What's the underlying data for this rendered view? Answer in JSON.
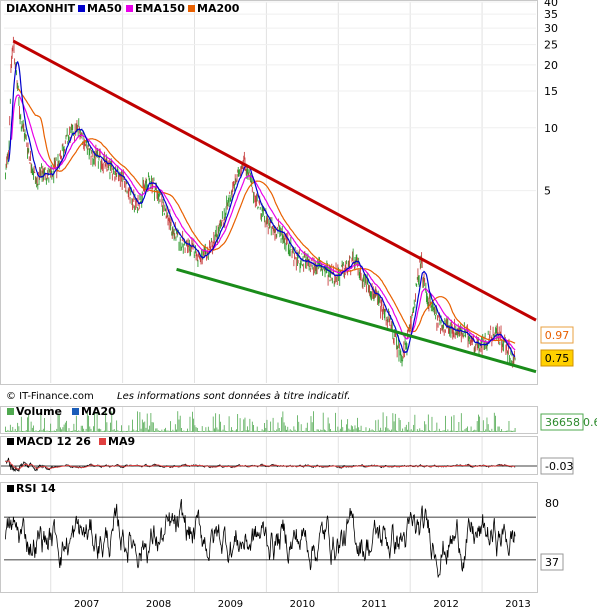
{
  "chart_data": [
    {
      "type": "line",
      "panel": "price",
      "ticker": "DIAXONHIT",
      "legend": [
        {
          "name": "MA50",
          "color": "#0000cc"
        },
        {
          "name": "EMA150",
          "color": "#e800e8"
        },
        {
          "name": "MA200",
          "color": "#e86000"
        }
      ],
      "scale": "log",
      "y_ticks": [
        40,
        35,
        30,
        25,
        20,
        15,
        10,
        5
      ],
      "ylim": [
        0.6,
        40
      ],
      "x_ticks": [
        "2007",
        "2008",
        "2009",
        "2010",
        "2011",
        "2012",
        "2013"
      ],
      "xlim": [
        2006.35,
        2013.75
      ],
      "last_values": {
        "ema150": "0.97",
        "close": "0.75"
      },
      "price_points": [
        [
          2006.35,
          5.0
        ],
        [
          2006.42,
          8.5
        ],
        [
          2006.45,
          20.0
        ],
        [
          2006.48,
          26.0
        ],
        [
          2006.52,
          18.0
        ],
        [
          2006.58,
          11.0
        ],
        [
          2006.65,
          9.0
        ],
        [
          2006.72,
          7.0
        ],
        [
          2006.8,
          5.5
        ],
        [
          2006.9,
          6.2
        ],
        [
          2007.0,
          5.8
        ],
        [
          2007.1,
          6.8
        ],
        [
          2007.2,
          8.5
        ],
        [
          2007.3,
          9.5
        ],
        [
          2007.4,
          10.0
        ],
        [
          2007.5,
          8.0
        ],
        [
          2007.6,
          7.2
        ],
        [
          2007.7,
          7.0
        ],
        [
          2007.8,
          6.5
        ],
        [
          2007.9,
          6.2
        ],
        [
          2008.0,
          5.8
        ],
        [
          2008.1,
          4.8
        ],
        [
          2008.2,
          4.2
        ],
        [
          2008.3,
          5.2
        ],
        [
          2008.4,
          5.6
        ],
        [
          2008.5,
          4.8
        ],
        [
          2008.6,
          4.0
        ],
        [
          2008.7,
          3.2
        ],
        [
          2008.8,
          2.9
        ],
        [
          2008.9,
          2.7
        ],
        [
          2009.0,
          2.6
        ],
        [
          2009.1,
          2.3
        ],
        [
          2009.2,
          2.6
        ],
        [
          2009.3,
          3.0
        ],
        [
          2009.4,
          3.6
        ],
        [
          2009.5,
          4.8
        ],
        [
          2009.6,
          5.8
        ],
        [
          2009.68,
          7.2
        ],
        [
          2009.8,
          5.2
        ],
        [
          2009.9,
          4.2
        ],
        [
          2010.0,
          3.6
        ],
        [
          2010.1,
          3.2
        ],
        [
          2010.2,
          3.2
        ],
        [
          2010.3,
          2.8
        ],
        [
          2010.4,
          2.4
        ],
        [
          2010.5,
          2.3
        ],
        [
          2010.6,
          2.2
        ],
        [
          2010.7,
          2.2
        ],
        [
          2010.8,
          2.1
        ],
        [
          2010.9,
          2.0
        ],
        [
          2011.0,
          2.0
        ],
        [
          2011.1,
          2.1
        ],
        [
          2011.2,
          2.3
        ],
        [
          2011.3,
          2.1
        ],
        [
          2011.4,
          1.8
        ],
        [
          2011.5,
          1.6
        ],
        [
          2011.6,
          1.4
        ],
        [
          2011.7,
          1.2
        ],
        [
          2011.8,
          0.95
        ],
        [
          2011.9,
          0.8
        ],
        [
          2012.0,
          1.1
        ],
        [
          2012.1,
          1.8
        ],
        [
          2012.15,
          2.3
        ],
        [
          2012.22,
          1.6
        ],
        [
          2012.3,
          1.4
        ],
        [
          2012.4,
          1.2
        ],
        [
          2012.5,
          1.1
        ],
        [
          2012.6,
          1.1
        ],
        [
          2012.7,
          1.05
        ],
        [
          2012.8,
          1.0
        ],
        [
          2012.9,
          0.95
        ],
        [
          2013.0,
          0.9
        ],
        [
          2013.1,
          1.0
        ],
        [
          2013.2,
          1.05
        ],
        [
          2013.3,
          0.95
        ],
        [
          2013.4,
          0.82
        ],
        [
          2013.45,
          0.75
        ]
      ],
      "trendlines": [
        {
          "name": "resistance",
          "color": "#c00000",
          "from": [
            2006.48,
            26.0
          ],
          "to": [
            2013.75,
            1.2
          ]
        },
        {
          "name": "support",
          "color": "#1a8c1a",
          "from": [
            2008.75,
            2.1
          ],
          "to": [
            2013.75,
            0.68
          ]
        }
      ]
    },
    {
      "type": "bar",
      "panel": "volume",
      "legend": [
        {
          "name": "Volume",
          "color": "#4fa84f"
        },
        {
          "name": "MA20",
          "color": "#1a5cb8"
        }
      ],
      "last_value": "36658",
      "last_value_overflow": "0.6"
    },
    {
      "type": "line",
      "panel": "macd",
      "legend": [
        {
          "name": "MACD 12 26",
          "color": "#000000"
        },
        {
          "name": "MA9",
          "color": "#e04040"
        }
      ],
      "last_value": "-0.03"
    },
    {
      "type": "line",
      "panel": "rsi",
      "legend": [
        {
          "name": "RSI 14",
          "color": "#000000"
        }
      ],
      "y_ticks": [
        80,
        37
      ],
      "ylim": [
        0,
        100
      ],
      "levels": [
        70,
        30
      ],
      "last_value": "37"
    }
  ],
  "footer": {
    "credit": "© IT-Finance.com",
    "disclaimer": "Les informations sont données à titre indicatif."
  }
}
